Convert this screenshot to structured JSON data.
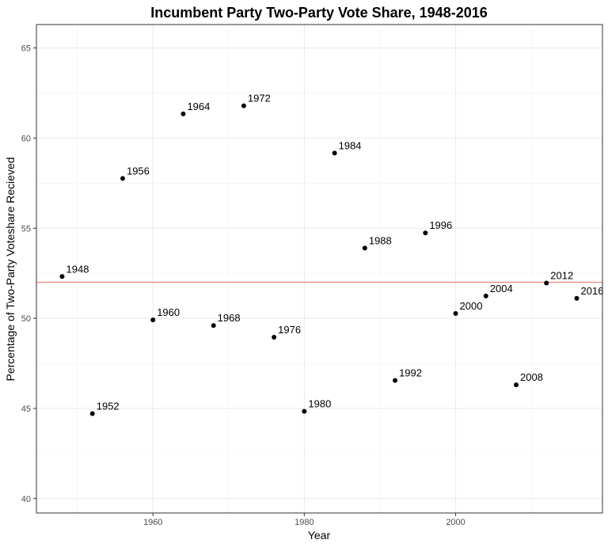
{
  "chart_data": {
    "type": "scatter",
    "title": "Incumbent Party Two-Party Vote Share, 1948-2016",
    "xlabel": "Year",
    "ylabel": "Percentage of Two-Party Voteshare Recieved",
    "xlim": [
      1944.6,
      2019.4
    ],
    "ylim": [
      39.2,
      66.3
    ],
    "x_ticks": [
      1960,
      1980,
      2000
    ],
    "y_ticks": [
      40,
      45,
      50,
      55,
      60,
      65
    ],
    "grid": true,
    "reference_line": {
      "y": 52.0,
      "color": "#f8766d"
    },
    "point_color": "#000000",
    "points": [
      {
        "x": 1948,
        "y": 52.32,
        "label": "1948"
      },
      {
        "x": 1952,
        "y": 44.71,
        "label": "1952"
      },
      {
        "x": 1956,
        "y": 57.76,
        "label": "1956"
      },
      {
        "x": 1960,
        "y": 49.91,
        "label": "1960"
      },
      {
        "x": 1964,
        "y": 61.34,
        "label": "1964"
      },
      {
        "x": 1968,
        "y": 49.6,
        "label": "1968"
      },
      {
        "x": 1972,
        "y": 61.79,
        "label": "1972"
      },
      {
        "x": 1976,
        "y": 48.95,
        "label": "1976"
      },
      {
        "x": 1980,
        "y": 44.84,
        "label": "1980"
      },
      {
        "x": 1984,
        "y": 59.17,
        "label": "1984"
      },
      {
        "x": 1988,
        "y": 53.9,
        "label": "1988"
      },
      {
        "x": 1992,
        "y": 46.55,
        "label": "1992"
      },
      {
        "x": 1996,
        "y": 54.74,
        "label": "1996"
      },
      {
        "x": 2000,
        "y": 50.27,
        "label": "2000"
      },
      {
        "x": 2004,
        "y": 51.24,
        "label": "2004"
      },
      {
        "x": 2008,
        "y": 46.31,
        "label": "2008"
      },
      {
        "x": 2012,
        "y": 51.96,
        "label": "2012"
      },
      {
        "x": 2016,
        "y": 51.11,
        "label": "2016"
      }
    ]
  }
}
